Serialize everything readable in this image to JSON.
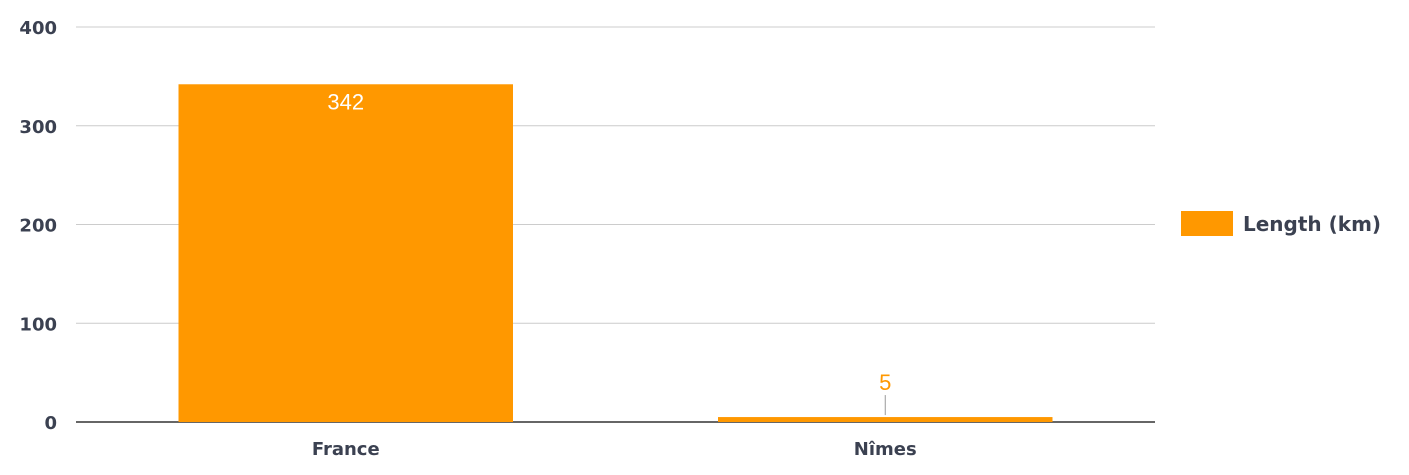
{
  "chart_data": {
    "type": "bar",
    "title": "",
    "xlabel": "",
    "ylabel": "",
    "categories": [
      "France",
      "Nîmes"
    ],
    "series": [
      {
        "name": "Length (km)",
        "color": "#ff9800",
        "values": [
          342,
          5
        ],
        "labels": [
          "342",
          "5"
        ]
      }
    ],
    "ylim": [
      0,
      400
    ],
    "yticks": [
      0,
      100,
      200,
      300,
      400
    ],
    "ytick_labels": [
      "0",
      "100",
      "200",
      "300",
      "400"
    ],
    "grid": true,
    "legend": {
      "position": "right"
    },
    "colors": {
      "grid": "#cccccc",
      "axis": "#333333",
      "text": "#3b4151",
      "label_inside": "#ffffff",
      "label_outside": "#ff9800",
      "leader_line": "#999999"
    }
  }
}
